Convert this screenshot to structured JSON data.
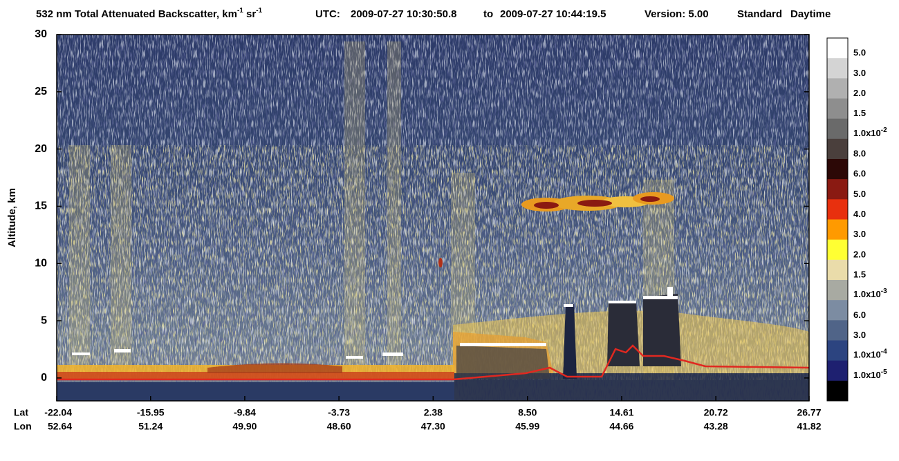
{
  "chart_data": {
    "type": "heatmap",
    "title": "532 nm Total Attenuated Backscatter,",
    "title_units": [
      {
        "base": "km",
        "exp": "-1"
      },
      {
        "base": "sr",
        "exp": "-1"
      }
    ],
    "utc_label": "UTC:",
    "start_time": "2009-07-27 10:30:50.8",
    "to": "to",
    "end_time": "2009-07-27 10:44:19.5",
    "version": "Version: 5.00",
    "product": "Standard",
    "lighting": "Daytime",
    "ylabel": "Altitude, km",
    "ylim": [
      -2,
      30
    ],
    "yticks": [
      0,
      5,
      10,
      15,
      20,
      25,
      30
    ],
    "x_row_labels": [
      "Lat",
      "Lon"
    ],
    "xlim": [
      -22.04,
      26.77
    ],
    "xticks": [
      -22.04,
      -15.95,
      -9.84,
      -3.73,
      2.38,
      {
        "value": 8.5,
        "label": "8.50"
      },
      14.61,
      20.72,
      26.77
    ],
    "lon_ticks": [
      52.64,
      51.24,
      {
        "value": 49.9,
        "label": "49.90"
      },
      {
        "value": 48.6,
        "label": "48.60"
      },
      {
        "value": 47.3,
        "label": "47.30"
      },
      45.99,
      44.66,
      43.28,
      41.82
    ],
    "colorbar": {
      "colors": [
        "#ffffff",
        "#d4d4d4",
        "#b0b0b0",
        "#8e8e8e",
        "#6a6a6a",
        "#4a3f3c",
        "#2c0806",
        "#8a1a12",
        "#e8300e",
        "#ff9a00",
        "#ffff33",
        "#eadcaa",
        "#a8aaa2",
        "#7c8ca2",
        "#506488",
        "#2c4480",
        "#1e2070",
        "#000000"
      ],
      "labels": [
        "5.0",
        "3.0",
        "2.0",
        "1.5",
        {
          "base": "1.0x10",
          "exp": "-2"
        },
        "8.0",
        "6.0",
        "5.0",
        "4.0",
        "3.0",
        "2.0",
        "1.5",
        {
          "base": "1.0x10",
          "exp": "-3"
        },
        "6.0",
        "3.0",
        {
          "base": "1.0x10",
          "exp": "-4"
        },
        {
          "base": "1.0x10",
          "exp": "-5"
        }
      ]
    }
  }
}
